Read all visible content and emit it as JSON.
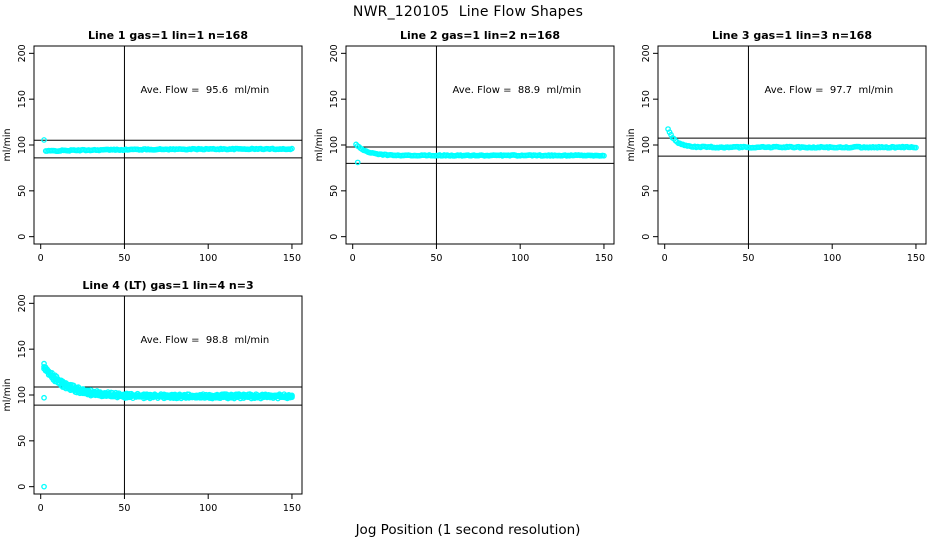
{
  "figure": {
    "title": "NWR_120105  Line Flow Shapes",
    "xlabel": "Jog Position (1 second resolution)",
    "background": "#ffffff",
    "marker_color": "#00FFFF",
    "axis_color": "#000000"
  },
  "chart_data": [
    {
      "type": "scatter",
      "title": "Line 1 gas=1 lin=1 n=168",
      "ylabel": "ml/min",
      "annotation": "Ave. Flow =  95.6  ml/min",
      "ave_flow_ml_min": 95.6,
      "n_points": 168,
      "xlim": [
        -4,
        156
      ],
      "ylim": [
        -8,
        208
      ],
      "xticks": [
        0,
        50,
        100,
        150
      ],
      "yticks": [
        0,
        50,
        100,
        150,
        200
      ],
      "vline_x": 50,
      "hlines_y": [
        105.2,
        86.0
      ],
      "annotation_pos": [
        98,
        157
      ],
      "marker_color": "#00FFFF",
      "series": [
        {
          "n": 167,
          "x_start": 3,
          "x_end": 150,
          "start_y": 93.4,
          "steady_y": 95.8,
          "tau": 45,
          "jitter": 0.55
        }
      ],
      "extra_points": [
        [
          2,
          105.5
        ]
      ]
    },
    {
      "type": "scatter",
      "title": "Line 2 gas=1 lin=2 n=168",
      "ylabel": "ml/min",
      "annotation": "Ave. Flow =  88.9  ml/min",
      "ave_flow_ml_min": 88.9,
      "n_points": 168,
      "xlim": [
        -4,
        156
      ],
      "ylim": [
        -8,
        208
      ],
      "xticks": [
        0,
        50,
        100,
        150
      ],
      "yticks": [
        0,
        50,
        100,
        150,
        200
      ],
      "vline_x": 50,
      "hlines_y": [
        97.8,
        80.0
      ],
      "annotation_pos": [
        98,
        157
      ],
      "marker_color": "#00FFFF",
      "series": [
        {
          "n": 167,
          "x_start": 2,
          "x_end": 150,
          "start_y": 101.0,
          "steady_y": 88.6,
          "tau": 6,
          "jitter": 0.5
        }
      ],
      "extra_points": [
        [
          3,
          81
        ]
      ]
    },
    {
      "type": "scatter",
      "title": "Line 3 gas=1 lin=3 n=168",
      "ylabel": "ml/min",
      "annotation": "Ave. Flow =  97.7  ml/min",
      "ave_flow_ml_min": 97.7,
      "n_points": 168,
      "xlim": [
        -4,
        156
      ],
      "ylim": [
        -8,
        208
      ],
      "xticks": [
        0,
        50,
        100,
        150
      ],
      "yticks": [
        0,
        50,
        100,
        150,
        200
      ],
      "vline_x": 50,
      "hlines_y": [
        107.5,
        87.9
      ],
      "annotation_pos": [
        98,
        157
      ],
      "marker_color": "#00FFFF",
      "series": [
        {
          "n": 168,
          "x_start": 2,
          "x_end": 150,
          "start_y": 117.0,
          "steady_y": 97.6,
          "tau": 4.5,
          "jitter": 0.7
        }
      ],
      "extra_points": []
    },
    {
      "type": "scatter",
      "title": "Line 4 (LT) gas=1 lin=4 n=3",
      "ylabel": "ml/min",
      "annotation": "Ave. Flow =  98.8  ml/min",
      "ave_flow_ml_min": 98.8,
      "n_points": 3,
      "xlim": [
        -4,
        156
      ],
      "ylim": [
        -8,
        208
      ],
      "xticks": [
        0,
        50,
        100,
        150
      ],
      "yticks": [
        0,
        50,
        100,
        150,
        200
      ],
      "vline_x": 50,
      "hlines_y": [
        108.7,
        88.9
      ],
      "annotation_pos": [
        98,
        157
      ],
      "marker_color": "#00FFFF",
      "series": [
        {
          "n": 160,
          "x_start": 2,
          "x_end": 150,
          "start_y": 129.0,
          "steady_y": 97.3,
          "tau": 12,
          "jitter": 1.2
        },
        {
          "n": 160,
          "x_start": 2,
          "x_end": 150,
          "start_y": 131.0,
          "steady_y": 98.6,
          "tau": 13,
          "jitter": 1.2
        },
        {
          "n": 160,
          "x_start": 2,
          "x_end": 150,
          "start_y": 133.0,
          "steady_y": 99.8,
          "tau": 14,
          "jitter": 1.2
        }
      ],
      "extra_points": [
        [
          2,
          0
        ],
        [
          2,
          97
        ]
      ]
    }
  ]
}
